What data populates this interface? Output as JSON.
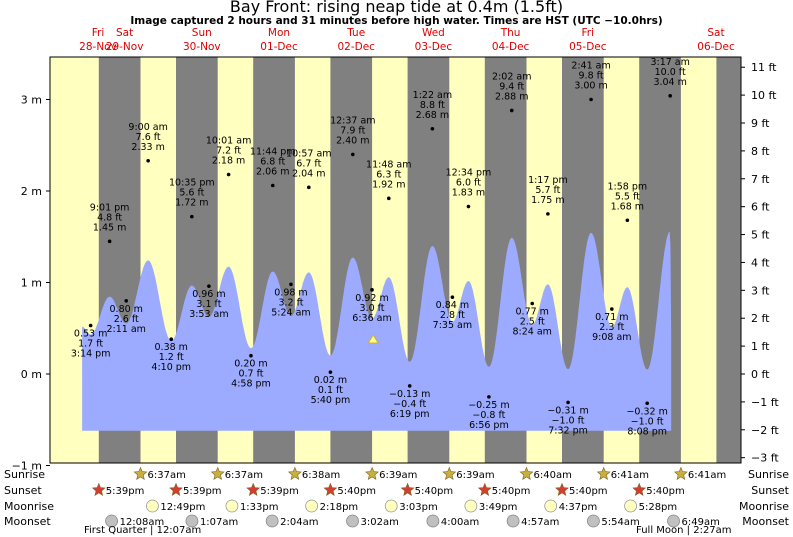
{
  "title": "Bay Front: rising  neap tide at 0.4m (1.5ft)",
  "subtitle": "Image captured 2 hours and 31 minutes before high water. Times are HST (UTC −10.0hrs)",
  "colors": {
    "day_bg": "#ffffc0",
    "night_bg": "#808080",
    "water": "#9cabff",
    "day_label": "#dd0000",
    "sun": "#c8b040",
    "sunset": "#d04030",
    "moonrise": "#ffffc0",
    "moonset": "#c0c0c0"
  },
  "chart_data": {
    "type": "area",
    "title": "Bay Front: rising  neap tide at 0.4m (1.5ft)",
    "left_axis": {
      "unit": "m",
      "ticks": [
        "3 m",
        "2 m",
        "1 m",
        "0 m",
        "−1 m"
      ],
      "range": [
        -1,
        3.5
      ]
    },
    "right_axis": {
      "unit": "ft",
      "ticks": [
        "11 ft",
        "10 ft",
        "9 ft",
        "8 ft",
        "7 ft",
        "6 ft",
        "5 ft",
        "4 ft",
        "3 ft",
        "2 ft",
        "1 ft",
        "0 ft",
        "−1 ft",
        "−2 ft",
        "−3 ft"
      ]
    },
    "days": [
      {
        "dow": "Fri",
        "date": "28-Nov"
      },
      {
        "dow": "Sat",
        "date": "29-Nov"
      },
      {
        "dow": "Sun",
        "date": "30-Nov"
      },
      {
        "dow": "Mon",
        "date": "01-Dec"
      },
      {
        "dow": "Tue",
        "date": "02-Dec"
      },
      {
        "dow": "Wed",
        "date": "03-Dec"
      },
      {
        "dow": "Thu",
        "date": "04-Dec"
      },
      {
        "dow": "Fri",
        "date": "05-Dec"
      },
      {
        "dow": "Sat",
        "date": "06-Dec"
      }
    ],
    "tides": [
      {
        "time": "3:14 pm",
        "m": "0.53 m",
        "ft": "1.7 ft",
        "value_m": 0.53,
        "day": 0.63
      },
      {
        "time": "9:01 pm",
        "m": "1.45 m",
        "ft": "4.8 ft",
        "value_m": 1.45,
        "day": 0.876
      },
      {
        "time": "2:11 am",
        "m": "0.80 m",
        "ft": "2.6 ft",
        "value_m": 0.8,
        "day": 1.091
      },
      {
        "time": "9:00 am",
        "m": "2.33 m",
        "ft": "7.6 ft",
        "value_m": 2.33,
        "day": 1.375
      },
      {
        "time": "4:10 pm",
        "m": "0.38 m",
        "ft": "1.2 ft",
        "value_m": 0.38,
        "day": 1.674
      },
      {
        "time": "10:35 pm",
        "m": "1.72 m",
        "ft": "5.6 ft",
        "value_m": 1.72,
        "day": 1.941
      },
      {
        "time": "3:53 am",
        "m": "0.96 m",
        "ft": "3.1 ft",
        "value_m": 0.96,
        "day": 2.162
      },
      {
        "time": "10:01 am",
        "m": "2.18 m",
        "ft": "7.2 ft",
        "value_m": 2.18,
        "day": 2.417
      },
      {
        "time": "4:58 pm",
        "m": "0.20 m",
        "ft": "0.7 ft",
        "value_m": 0.2,
        "day": 2.707
      },
      {
        "time": "11:44 pm",
        "m": "2.06 m",
        "ft": "6.8 ft",
        "value_m": 2.06,
        "day": 2.989
      },
      {
        "time": "5:24 am",
        "m": "0.98 m",
        "ft": "3.2 ft",
        "value_m": 0.98,
        "day": 3.225
      },
      {
        "time": "10:57 am",
        "m": "2.04 m",
        "ft": "6.7 ft",
        "value_m": 2.04,
        "day": 3.456
      },
      {
        "time": "5:40 pm",
        "m": "0.02 m",
        "ft": "0.1 ft",
        "value_m": 0.02,
        "day": 3.736
      },
      {
        "time": "12:37 am",
        "m": "2.40 m",
        "ft": "7.9 ft",
        "value_m": 2.4,
        "day": 4.026
      },
      {
        "time": "6:36 am",
        "m": "0.92 m",
        "ft": "3.0 ft",
        "value_m": 0.92,
        "day": 4.275
      },
      {
        "time": "11:48 am",
        "m": "1.92 m",
        "ft": "6.3 ft",
        "value_m": 1.92,
        "day": 4.492
      },
      {
        "time": "6:19 pm",
        "m": "−0.13 m",
        "ft": "−0.4 ft",
        "value_m": -0.13,
        "day": 4.763
      },
      {
        "time": "1:22 am",
        "m": "2.68 m",
        "ft": "8.8 ft",
        "value_m": 2.68,
        "day": 5.057
      },
      {
        "time": "7:35 am",
        "m": "0.84 m",
        "ft": "2.8 ft",
        "value_m": 0.84,
        "day": 5.316
      },
      {
        "time": "12:34 pm",
        "m": "1.83 m",
        "ft": "6.0 ft",
        "value_m": 1.83,
        "day": 5.524
      },
      {
        "time": "6:56 pm",
        "m": "−0.25 m",
        "ft": "−0.8 ft",
        "value_m": -0.25,
        "day": 5.789
      },
      {
        "time": "2:02 am",
        "m": "2.88 m",
        "ft": "9.4 ft",
        "value_m": 2.88,
        "day": 6.085
      },
      {
        "time": "8:24 am",
        "m": "0.77 m",
        "ft": "2.5 ft",
        "value_m": 0.77,
        "day": 6.35
      },
      {
        "time": "1:17 pm",
        "m": "1.75 m",
        "ft": "5.7 ft",
        "value_m": 1.75,
        "day": 6.553
      },
      {
        "time": "7:32 pm",
        "m": "−0.31 m",
        "ft": "−1.0 ft",
        "value_m": -0.31,
        "day": 6.814
      },
      {
        "time": "2:41 am",
        "m": "3.00 m",
        "ft": "9.8 ft",
        "value_m": 3.0,
        "day": 7.112
      },
      {
        "time": "9:08 am",
        "m": "0.71 m",
        "ft": "2.3 ft",
        "value_m": 0.71,
        "day": 7.381
      },
      {
        "time": "1:58 pm",
        "m": "1.68 m",
        "ft": "5.5 ft",
        "value_m": 1.68,
        "day": 7.582
      },
      {
        "time": "8:08 pm",
        "m": "−0.32 m",
        "ft": "−1.0 ft",
        "value_m": -0.32,
        "day": 7.839
      },
      {
        "time": "3:17 am",
        "m": "3.04 m",
        "ft": "10.0 ft",
        "value_m": 3.04,
        "day": 8.137
      }
    ],
    "current_tide_m": 0.4
  },
  "rows": {
    "sunrise_label": "Sunrise",
    "sunset_label": "Sunset",
    "moonrise_label": "Moonrise",
    "moonset_label": "Moonset",
    "sunrise": [
      "6:37am",
      "6:37am",
      "6:38am",
      "6:39am",
      "6:39am",
      "6:40am",
      "6:41am",
      "6:41am"
    ],
    "sunset": [
      "5:39pm",
      "5:39pm",
      "5:39pm",
      "5:40pm",
      "5:40pm",
      "5:40pm",
      "5:40pm",
      "5:40pm"
    ],
    "moonrise": [
      "12:49pm",
      "1:33pm",
      "2:18pm",
      "3:03pm",
      "3:49pm",
      "4:37pm",
      "5:28pm"
    ],
    "moonset": [
      "12:08am",
      "1:07am",
      "2:04am",
      "3:02am",
      "4:00am",
      "4:57am",
      "5:54am",
      "6:49am"
    ],
    "first_quarter": "First Quarter | 12:07am",
    "full_moon": "Full Moon | 2:27am"
  }
}
